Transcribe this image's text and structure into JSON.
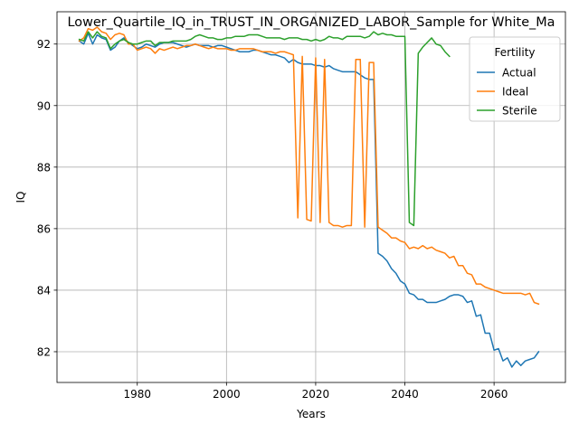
{
  "chart_data": {
    "type": "line",
    "title": "Lower_Quartile_IQ_in_TRUST_IN_ORGANIZED_LABOR_Sample for White_Ma",
    "xlabel": "Years",
    "ylabel": "IQ",
    "xlim": [
      1962,
      2076
    ],
    "ylim": [
      81.0,
      93.05
    ],
    "xticks": [
      1980,
      2000,
      2020,
      2040,
      2060
    ],
    "yticks": [
      82,
      84,
      86,
      88,
      90,
      92
    ],
    "grid": true,
    "legend": {
      "title": "Fertility",
      "position": "upper right"
    },
    "series": [
      {
        "name": "Actual",
        "color": "#1f77b4",
        "x": [
          1967,
          1968,
          1969,
          1970,
          1971,
          1972,
          1973,
          1974,
          1975,
          1976,
          1977,
          1978,
          1979,
          1980,
          1981,
          1982,
          1983,
          1984,
          1985,
          1986,
          1987,
          1988,
          1989,
          1990,
          1991,
          1992,
          1993,
          1994,
          1995,
          1996,
          1997,
          1998,
          1999,
          2000,
          2001,
          2002,
          2003,
          2004,
          2005,
          2006,
          2007,
          2008,
          2009,
          2010,
          2011,
          2012,
          2013,
          2014,
          2015,
          2016,
          2017,
          2018,
          2019,
          2020,
          2021,
          2022,
          2023,
          2024,
          2025,
          2026,
          2027,
          2028,
          2029,
          2030,
          2031,
          2032,
          2033,
          2034,
          2035,
          2036,
          2037,
          2038,
          2039,
          2040,
          2041,
          2042,
          2043,
          2044,
          2045,
          2046,
          2047,
          2048,
          2049,
          2050,
          2051,
          2052,
          2053,
          2054,
          2055,
          2056,
          2057,
          2058,
          2059,
          2060,
          2061,
          2062,
          2063,
          2064,
          2065,
          2066,
          2067,
          2068,
          2069,
          2070
        ],
        "y": [
          92.1,
          92.0,
          92.35,
          92.0,
          92.3,
          92.2,
          92.15,
          91.8,
          91.9,
          92.1,
          92.2,
          92.05,
          91.95,
          91.85,
          91.9,
          92.0,
          91.95,
          91.9,
          92.0,
          92.05,
          92.05,
          92.05,
          92.0,
          91.95,
          91.9,
          91.95,
          92.0,
          91.95,
          91.95,
          91.95,
          91.9,
          91.95,
          91.95,
          91.9,
          91.85,
          91.8,
          91.75,
          91.75,
          91.75,
          91.8,
          91.8,
          91.75,
          91.7,
          91.65,
          91.65,
          91.6,
          91.55,
          91.4,
          91.5,
          91.4,
          91.35,
          91.35,
          91.35,
          91.3,
          91.3,
          91.25,
          91.3,
          91.2,
          91.15,
          91.1,
          91.1,
          91.1,
          91.1,
          91.0,
          90.9,
          90.85,
          90.85,
          85.2,
          85.1,
          84.95,
          84.7,
          84.55,
          84.3,
          84.2,
          83.9,
          83.85,
          83.7,
          83.7,
          83.6,
          83.6,
          83.6,
          83.65,
          83.7,
          83.8,
          83.85,
          83.85,
          83.8,
          83.6,
          83.65,
          83.15,
          83.2,
          82.6,
          82.6,
          82.05,
          82.1,
          81.7,
          81.8,
          81.5,
          81.7,
          81.55,
          81.7,
          81.75,
          81.8,
          82.0
        ]
      },
      {
        "name": "Ideal",
        "color": "#ff7f0e",
        "x": [
          1967,
          1968,
          1969,
          1970,
          1971,
          1972,
          1973,
          1974,
          1975,
          1976,
          1977,
          1978,
          1979,
          1980,
          1981,
          1982,
          1983,
          1984,
          1985,
          1986,
          1987,
          1988,
          1989,
          1990,
          1991,
          1992,
          1993,
          1994,
          1995,
          1996,
          1997,
          1998,
          1999,
          2000,
          2001,
          2002,
          2003,
          2004,
          2005,
          2006,
          2007,
          2008,
          2009,
          2010,
          2011,
          2012,
          2013,
          2014,
          2015,
          2016,
          2017,
          2018,
          2019,
          2020,
          2021,
          2022,
          2023,
          2024,
          2025,
          2026,
          2027,
          2028,
          2029,
          2030,
          2031,
          2032,
          2033,
          2034,
          2035,
          2036,
          2037,
          2038,
          2039,
          2040,
          2041,
          2042,
          2043,
          2044,
          2045,
          2046,
          2047,
          2048,
          2049,
          2050,
          2051,
          2052,
          2053,
          2054,
          2055,
          2056,
          2057,
          2058,
          2059,
          2060,
          2061,
          2062,
          2063,
          2064,
          2065,
          2066,
          2067,
          2068,
          2069,
          2070
        ],
        "y": [
          92.1,
          92.2,
          92.5,
          92.45,
          92.55,
          92.4,
          92.35,
          92.15,
          92.3,
          92.35,
          92.3,
          92.0,
          92.0,
          91.8,
          91.85,
          91.9,
          91.85,
          91.7,
          91.85,
          91.8,
          91.85,
          91.9,
          91.85,
          91.9,
          91.95,
          91.95,
          92.0,
          91.95,
          91.9,
          91.85,
          91.9,
          91.85,
          91.85,
          91.85,
          91.8,
          91.8,
          91.85,
          91.85,
          91.85,
          91.85,
          91.8,
          91.75,
          91.75,
          91.75,
          91.7,
          91.75,
          91.75,
          91.7,
          91.65,
          86.35,
          91.6,
          86.3,
          86.25,
          91.55,
          86.2,
          91.5,
          86.2,
          86.1,
          86.1,
          86.05,
          86.1,
          86.1,
          91.5,
          91.5,
          86.05,
          91.4,
          91.4,
          86.05,
          85.95,
          85.85,
          85.7,
          85.7,
          85.6,
          85.55,
          85.35,
          85.4,
          85.35,
          85.45,
          85.35,
          85.4,
          85.3,
          85.25,
          85.2,
          85.05,
          85.1,
          84.8,
          84.8,
          84.55,
          84.5,
          84.2,
          84.2,
          84.1,
          84.05,
          84.0,
          83.95,
          83.9,
          83.9,
          83.9,
          83.9,
          83.9,
          83.85,
          83.9,
          83.6,
          83.55
        ]
      },
      {
        "name": "Sterile",
        "color": "#2ca02c",
        "x": [
          1967,
          1968,
          1969,
          1970,
          1971,
          1972,
          1973,
          1974,
          1975,
          1976,
          1977,
          1978,
          1979,
          1980,
          1981,
          1982,
          1983,
          1984,
          1985,
          1986,
          1987,
          1988,
          1989,
          1990,
          1991,
          1992,
          1993,
          1994,
          1995,
          1996,
          1997,
          1998,
          1999,
          2000,
          2001,
          2002,
          2003,
          2004,
          2005,
          2006,
          2007,
          2008,
          2009,
          2010,
          2011,
          2012,
          2013,
          2014,
          2015,
          2016,
          2017,
          2018,
          2019,
          2020,
          2021,
          2022,
          2023,
          2024,
          2025,
          2026,
          2027,
          2028,
          2029,
          2030,
          2031,
          2032,
          2033,
          2034,
          2035,
          2036,
          2037,
          2038,
          2039,
          2040,
          2041,
          2042,
          2043,
          2044,
          2045,
          2046,
          2047,
          2048,
          2049,
          2050
        ],
        "y": [
          92.15,
          92.1,
          92.4,
          92.2,
          92.4,
          92.25,
          92.2,
          91.85,
          92.0,
          92.1,
          92.15,
          92.05,
          92.0,
          92.0,
          92.05,
          92.1,
          92.1,
          91.95,
          92.05,
          92.05,
          92.05,
          92.1,
          92.1,
          92.1,
          92.1,
          92.15,
          92.25,
          92.3,
          92.25,
          92.2,
          92.2,
          92.15,
          92.15,
          92.2,
          92.2,
          92.25,
          92.25,
          92.25,
          92.3,
          92.3,
          92.3,
          92.25,
          92.2,
          92.2,
          92.2,
          92.2,
          92.15,
          92.2,
          92.2,
          92.2,
          92.15,
          92.15,
          92.1,
          92.15,
          92.1,
          92.15,
          92.25,
          92.2,
          92.2,
          92.15,
          92.25,
          92.25,
          92.25,
          92.25,
          92.2,
          92.25,
          92.4,
          92.3,
          92.35,
          92.3,
          92.3,
          92.25,
          92.25,
          92.25,
          86.2,
          86.1,
          91.7,
          91.9,
          92.05,
          92.2,
          92.0,
          91.95,
          91.75,
          91.6
        ]
      }
    ]
  }
}
